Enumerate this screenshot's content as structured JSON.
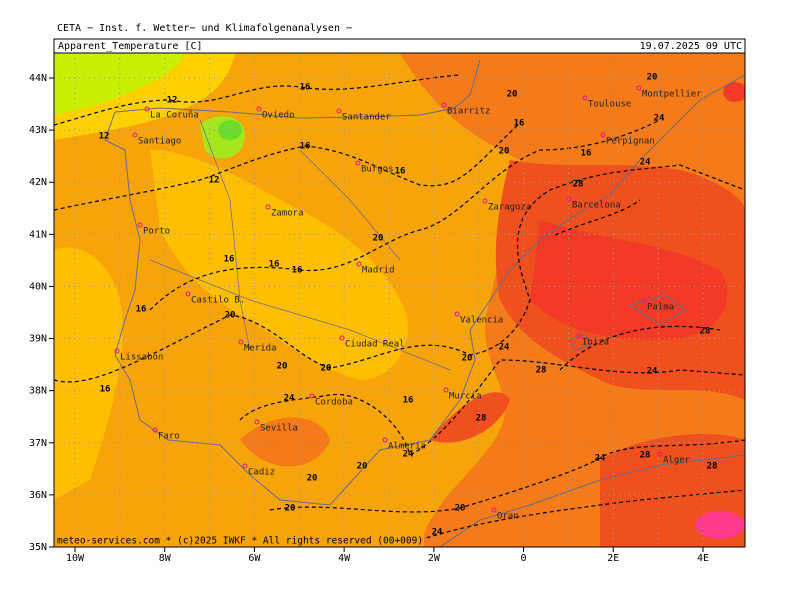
{
  "header": "CETA − Inst. f. Wetter− und Klimafolgenanalysen −",
  "title": "Apparent_Temperature [C]",
  "date": "19.07.2025 09 UTC",
  "footer": "meteo-services.com * (c)2025 IWKF * All rights reserved (00+009)",
  "lon_labels": [
    "10W",
    "8W",
    "6W",
    "4W",
    "2W",
    "0",
    "2E",
    "4E"
  ],
  "lat_labels": [
    "44N",
    "43N",
    "42N",
    "41N",
    "40N",
    "39N",
    "38N",
    "37N",
    "36N",
    "35N"
  ],
  "cities": [
    "La Coruña",
    "Santiago",
    "Oviedo",
    "Santander",
    "Biarritz",
    "Toulouse",
    "Montpellier",
    "Perpignan",
    "Burgos",
    "Zamora",
    "Zaragoza",
    "Barcelona",
    "Porto",
    "Madrid",
    "Castilo B.",
    "Valencia",
    "Palma",
    "Lissabon",
    "Merida",
    "Ciudad Real",
    "Ibiza",
    "Cordoba",
    "Murcia",
    "Sevilla",
    "Faro",
    "Almeria",
    "Alger",
    "Cadiz",
    "Oran"
  ],
  "contour_labels": [
    12,
    12,
    12,
    16,
    16,
    16,
    16,
    16,
    16,
    16,
    16,
    16,
    16,
    16,
    20,
    20,
    20,
    20,
    20,
    20,
    20,
    20,
    20,
    20,
    20,
    20,
    24,
    24,
    24,
    24,
    24,
    24,
    24,
    24,
    28,
    28,
    28,
    28,
    28,
    28
  ]
}
